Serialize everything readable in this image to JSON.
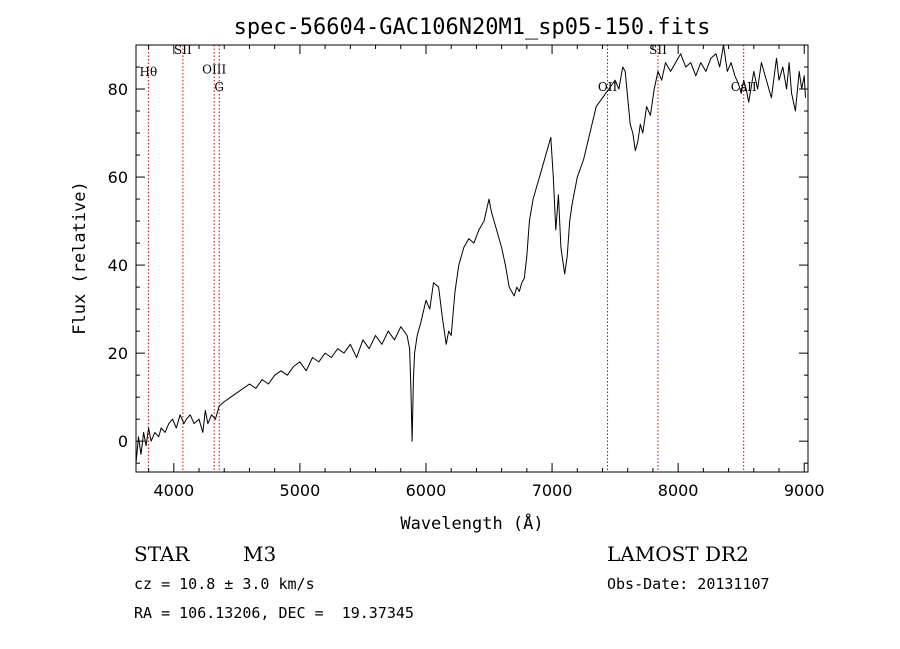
{
  "chart_data": {
    "type": "line",
    "title": "spec-56604-GAC106N20M1_sp05-150.fits",
    "xlabel": "Wavelength (Å)",
    "ylabel": "Flux (relative)",
    "xlim": [
      3700,
      9030
    ],
    "ylim": [
      -7,
      90
    ],
    "xticks": [
      4000,
      5000,
      6000,
      7000,
      8000,
      9000
    ],
    "yticks": [
      0,
      20,
      40,
      60,
      80
    ],
    "grid": false,
    "line_color": "#000000",
    "marker_color": "#cc0000",
    "series": [
      {
        "x": [
          3700,
          3720,
          3740,
          3760,
          3780,
          3800,
          3820,
          3850,
          3880,
          3900,
          3930,
          3960,
          3990,
          4020,
          4050,
          4080,
          4100,
          4130,
          4160,
          4200,
          4230,
          4250,
          4270,
          4300,
          4330,
          4360,
          4400,
          4450,
          4500,
          4550,
          4600,
          4650,
          4700,
          4750,
          4800,
          4850,
          4900,
          4950,
          5000,
          5050,
          5100,
          5150,
          5200,
          5250,
          5300,
          5350,
          5400,
          5450,
          5500,
          5550,
          5600,
          5650,
          5700,
          5750,
          5800,
          5850,
          5870,
          5880,
          5890,
          5900,
          5910,
          5930,
          5960,
          6000,
          6030,
          6060,
          6100,
          6130,
          6160,
          6180,
          6200,
          6230,
          6260,
          6300,
          6340,
          6380,
          6420,
          6460,
          6500,
          6520,
          6540,
          6560,
          6580,
          6600,
          6630,
          6660,
          6700,
          6720,
          6740,
          6760,
          6780,
          6800,
          6820,
          6850,
          6880,
          6920,
          6960,
          6990,
          7010,
          7030,
          7050,
          7070,
          7100,
          7120,
          7140,
          7160,
          7200,
          7250,
          7300,
          7350,
          7400,
          7450,
          7500,
          7530,
          7560,
          7580,
          7600,
          7620,
          7640,
          7660,
          7680,
          7700,
          7720,
          7750,
          7780,
          7810,
          7840,
          7870,
          7900,
          7940,
          7980,
          8020,
          8060,
          8100,
          8140,
          8180,
          8220,
          8260,
          8300,
          8330,
          8360,
          8390,
          8420,
          8450,
          8480,
          8500,
          8520,
          8540,
          8560,
          8600,
          8630,
          8660,
          8700,
          8740,
          8780,
          8800,
          8830,
          8860,
          8880,
          8900,
          8930,
          8960,
          8980,
          9000,
          9010
        ],
        "y": [
          -5,
          1,
          -3,
          2,
          -1,
          3,
          0,
          2,
          1,
          3,
          2,
          4,
          5,
          3,
          6,
          4,
          5,
          6,
          4,
          5,
          2,
          7,
          4,
          6,
          5,
          8,
          9,
          10,
          11,
          12,
          13,
          12,
          14,
          13,
          15,
          16,
          15,
          17,
          18,
          16,
          19,
          18,
          20,
          19,
          21,
          20,
          22,
          19,
          23,
          21,
          24,
          22,
          25,
          23,
          26,
          24,
          21,
          12,
          0,
          14,
          20,
          24,
          27,
          32,
          30,
          36,
          35,
          28,
          22,
          25,
          24,
          34,
          40,
          44,
          46,
          45,
          48,
          50,
          55,
          52,
          50,
          48,
          46,
          44,
          40,
          35,
          33,
          35,
          34,
          36,
          37,
          42,
          50,
          55,
          58,
          62,
          66,
          69,
          60,
          48,
          56,
          44,
          38,
          42,
          50,
          54,
          60,
          64,
          70,
          76,
          78,
          80,
          82,
          80,
          85,
          84,
          78,
          72,
          70,
          66,
          68,
          72,
          70,
          76,
          74,
          80,
          84,
          82,
          86,
          84,
          86,
          88,
          85,
          86,
          83,
          86,
          84,
          87,
          88,
          85,
          90,
          84,
          86,
          83,
          81,
          79,
          82,
          80,
          77,
          84,
          80,
          86,
          82,
          78,
          87,
          82,
          85,
          80,
          86,
          79,
          75,
          84,
          80,
          83,
          78
        ]
      }
    ],
    "spectral_lines": [
      {
        "label": "Hθ",
        "x": 3798,
        "label_y": 83
      },
      {
        "label": "SII",
        "x": 4072,
        "label_y": 88
      },
      {
        "label": "OIII",
        "x": 4320,
        "label_y": 83.5
      },
      {
        "label": "G",
        "x": 4360,
        "label_y": 79.5
      },
      {
        "label": "OII",
        "x": 7440,
        "label_y": 79.5
      },
      {
        "label": "SII",
        "x": 7840,
        "label_y": 88
      },
      {
        "label": "CaII",
        "x": 8520,
        "label_y": 79.5
      }
    ]
  },
  "info": {
    "object_type": "STAR",
    "subclass": "M3",
    "survey": "LAMOST DR2",
    "redshift": "cz = 10.8 ± 3.0 km/s",
    "obs_date": "Obs-Date: 20131107",
    "coords": "RA = 106.13206, DEC =  19.37345"
  }
}
